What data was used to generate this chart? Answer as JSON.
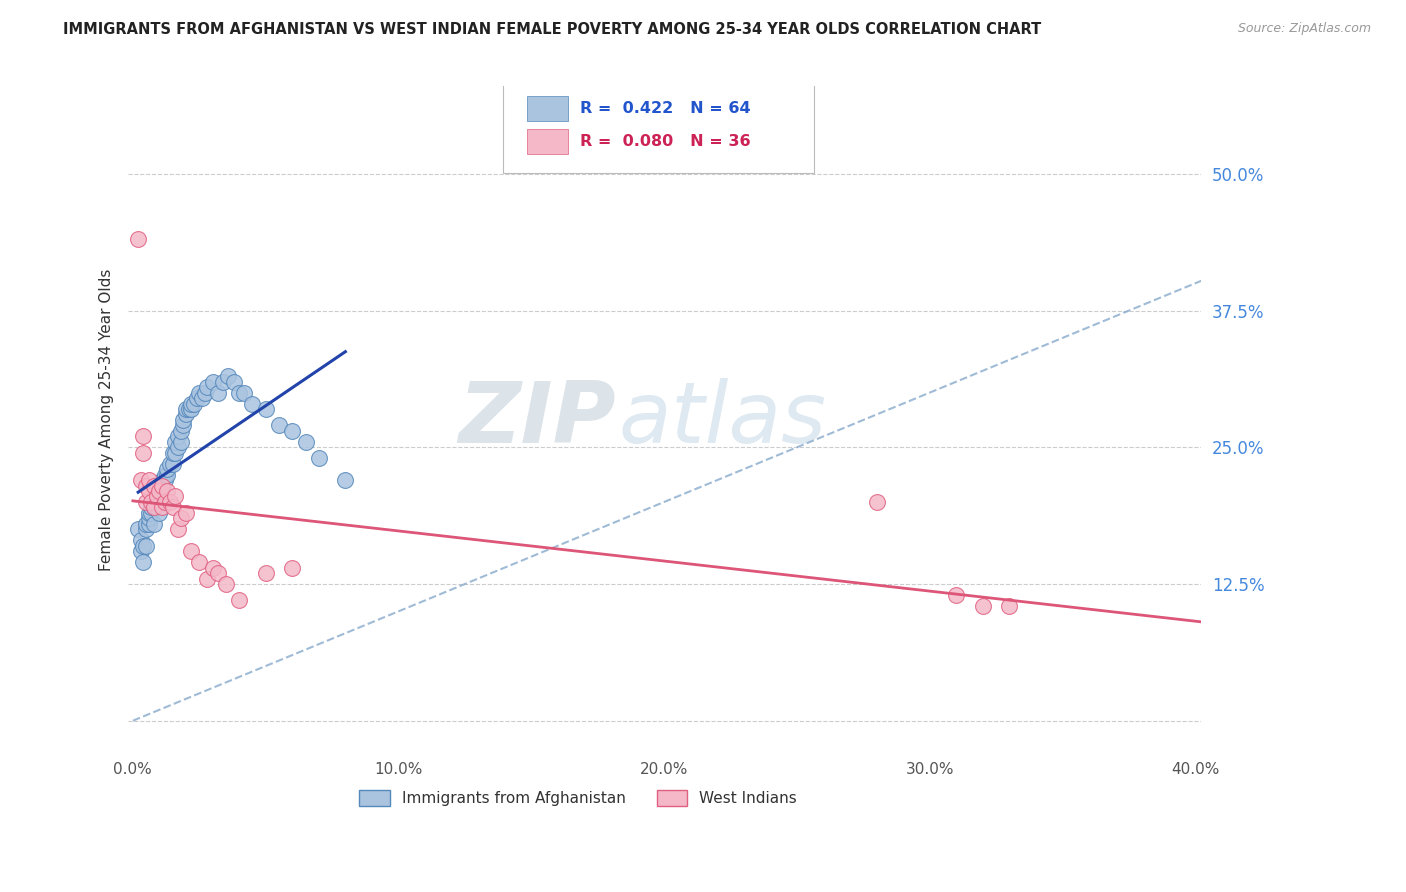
{
  "title": "IMMIGRANTS FROM AFGHANISTAN VS WEST INDIAN FEMALE POVERTY AMONG 25-34 YEAR OLDS CORRELATION CHART",
  "source": "Source: ZipAtlas.com",
  "ylabel": "Female Poverty Among 25-34 Year Olds",
  "xlim": [
    -0.002,
    0.402
  ],
  "ylim": [
    -0.03,
    0.58
  ],
  "yticks": [
    0.0,
    0.125,
    0.25,
    0.375,
    0.5
  ],
  "ytick_labels": [
    "",
    "12.5%",
    "25.0%",
    "37.5%",
    "50.0%"
  ],
  "xticks": [
    0.0,
    0.1,
    0.2,
    0.3,
    0.4
  ],
  "xtick_labels": [
    "0.0%",
    "10.0%",
    "20.0%",
    "30.0%",
    "40.0%"
  ],
  "afghanistan_color": "#aac4e0",
  "afghanistan_edge": "#5588bb",
  "west_indian_color": "#f4b8c8",
  "west_indian_edge": "#e06080",
  "afghanistan_R": 0.422,
  "afghanistan_N": 64,
  "west_indian_R": 0.08,
  "west_indian_N": 36,
  "legend_label1": "Immigrants from Afghanistan",
  "legend_label2": "West Indians",
  "watermark_zip": "ZIP",
  "watermark_atlas": "atlas",
  "background_color": "#ffffff",
  "grid_color": "#cccccc",
  "title_color": "#222222",
  "axis_label_color": "#333333",
  "tick_color_right": "#4488dd",
  "tick_color_bottom": "#555555",
  "legend_R_color_afg": "#2255cc",
  "legend_R_color_wi": "#cc2255",
  "afg_line_color": "#2244aa",
  "wi_line_color": "#dd5577",
  "diag_line_color": "#88aacc",
  "afg_x": [
    0.002,
    0.003,
    0.003,
    0.004,
    0.004,
    0.005,
    0.005,
    0.005,
    0.006,
    0.006,
    0.006,
    0.007,
    0.007,
    0.007,
    0.008,
    0.008,
    0.008,
    0.009,
    0.009,
    0.01,
    0.01,
    0.01,
    0.011,
    0.011,
    0.012,
    0.012,
    0.013,
    0.013,
    0.014,
    0.015,
    0.015,
    0.016,
    0.016,
    0.017,
    0.017,
    0.018,
    0.018,
    0.019,
    0.019,
    0.02,
    0.02,
    0.021,
    0.022,
    0.022,
    0.023,
    0.024,
    0.025,
    0.026,
    0.027,
    0.028,
    0.03,
    0.032,
    0.034,
    0.036,
    0.038,
    0.04,
    0.042,
    0.045,
    0.05,
    0.055,
    0.06,
    0.065,
    0.07,
    0.08
  ],
  "afg_y": [
    0.175,
    0.155,
    0.165,
    0.145,
    0.16,
    0.16,
    0.175,
    0.18,
    0.18,
    0.185,
    0.19,
    0.19,
    0.195,
    0.2,
    0.18,
    0.195,
    0.205,
    0.2,
    0.21,
    0.19,
    0.2,
    0.215,
    0.22,
    0.215,
    0.22,
    0.225,
    0.225,
    0.23,
    0.235,
    0.235,
    0.245,
    0.245,
    0.255,
    0.25,
    0.26,
    0.255,
    0.265,
    0.27,
    0.275,
    0.28,
    0.285,
    0.285,
    0.285,
    0.29,
    0.29,
    0.295,
    0.3,
    0.295,
    0.3,
    0.305,
    0.31,
    0.3,
    0.31,
    0.315,
    0.31,
    0.3,
    0.3,
    0.29,
    0.285,
    0.27,
    0.265,
    0.255,
    0.24,
    0.22
  ],
  "wi_x": [
    0.002,
    0.003,
    0.004,
    0.004,
    0.005,
    0.005,
    0.006,
    0.006,
    0.007,
    0.008,
    0.008,
    0.009,
    0.01,
    0.011,
    0.011,
    0.012,
    0.013,
    0.014,
    0.015,
    0.016,
    0.017,
    0.018,
    0.02,
    0.022,
    0.025,
    0.028,
    0.03,
    0.032,
    0.035,
    0.04,
    0.05,
    0.06,
    0.28,
    0.31,
    0.32,
    0.33
  ],
  "wi_y": [
    0.44,
    0.22,
    0.245,
    0.26,
    0.2,
    0.215,
    0.21,
    0.22,
    0.2,
    0.195,
    0.215,
    0.205,
    0.21,
    0.195,
    0.215,
    0.2,
    0.21,
    0.2,
    0.195,
    0.205,
    0.175,
    0.185,
    0.19,
    0.155,
    0.145,
    0.13,
    0.14,
    0.135,
    0.125,
    0.11,
    0.135,
    0.14,
    0.2,
    0.115,
    0.105,
    0.105
  ]
}
